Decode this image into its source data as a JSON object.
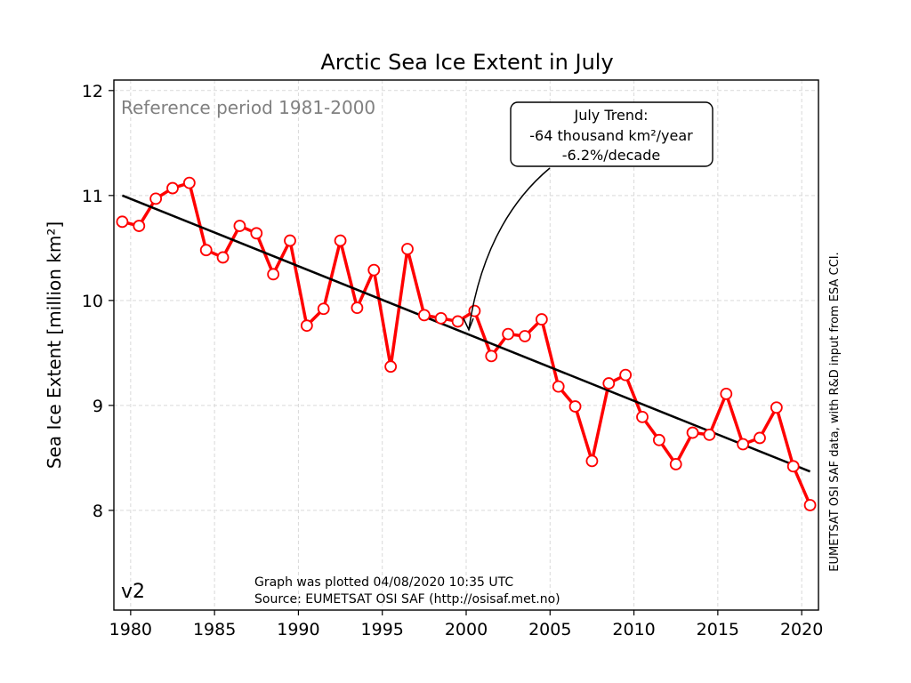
{
  "chart_data": {
    "type": "line",
    "title": "Arctic Sea Ice Extent in July",
    "ylabel": "Sea Ice Extent [million km²]",
    "xlabel": "",
    "xlim": [
      1979,
      2021
    ],
    "ylim": [
      7.05,
      12.1
    ],
    "xticks": [
      1980,
      1985,
      1990,
      1995,
      2000,
      2005,
      2010,
      2015,
      2020
    ],
    "yticks": [
      8,
      9,
      10,
      11,
      12
    ],
    "grid": true,
    "series": [
      {
        "color": "#ff0000",
        "marker": "open-circle",
        "x": [
          1979.5,
          1980.5,
          1981.5,
          1982.5,
          1983.5,
          1984.5,
          1985.5,
          1986.5,
          1987.5,
          1988.5,
          1989.5,
          1990.5,
          1991.5,
          1992.5,
          1993.5,
          1994.5,
          1995.5,
          1996.5,
          1997.5,
          1998.5,
          1999.5,
          2000.5,
          2001.5,
          2002.5,
          2003.5,
          2004.5,
          2005.5,
          2006.5,
          2007.5,
          2008.5,
          2009.5,
          2010.5,
          2011.5,
          2012.5,
          2013.5,
          2014.5,
          2015.5,
          2016.5,
          2017.5,
          2018.5,
          2019.5,
          2020.5
        ],
        "values": [
          10.75,
          10.71,
          10.97,
          11.07,
          11.12,
          10.48,
          10.41,
          10.71,
          10.64,
          10.25,
          10.57,
          9.76,
          9.92,
          10.57,
          9.93,
          10.29,
          9.37,
          10.49,
          9.86,
          9.83,
          9.8,
          9.9,
          9.47,
          9.68,
          9.66,
          9.82,
          9.18,
          8.99,
          8.47,
          9.21,
          9.29,
          8.89,
          8.67,
          8.44,
          8.74,
          8.72,
          9.11,
          8.63,
          8.69,
          8.98,
          8.42,
          8.05
        ]
      },
      {
        "name": "trend",
        "color": "#000000",
        "x": [
          1979.5,
          2020.5
        ],
        "values": [
          11.0,
          8.37
        ]
      }
    ],
    "annotations": {
      "reference": "Reference period 1981-2000",
      "version": "v2",
      "trend_line1": "July Trend:",
      "trend_line2": "-64 thousand km²/year",
      "trend_line3": "-6.2%/decade",
      "plotted": "Graph was plotted 04/08/2020 10:35 UTC",
      "source": "Source: EUMETSAT OSI SAF (http://osisaf.met.no)",
      "credit": "EUMETSAT OSI SAF data, with R&D input from ESA CCI."
    }
  }
}
